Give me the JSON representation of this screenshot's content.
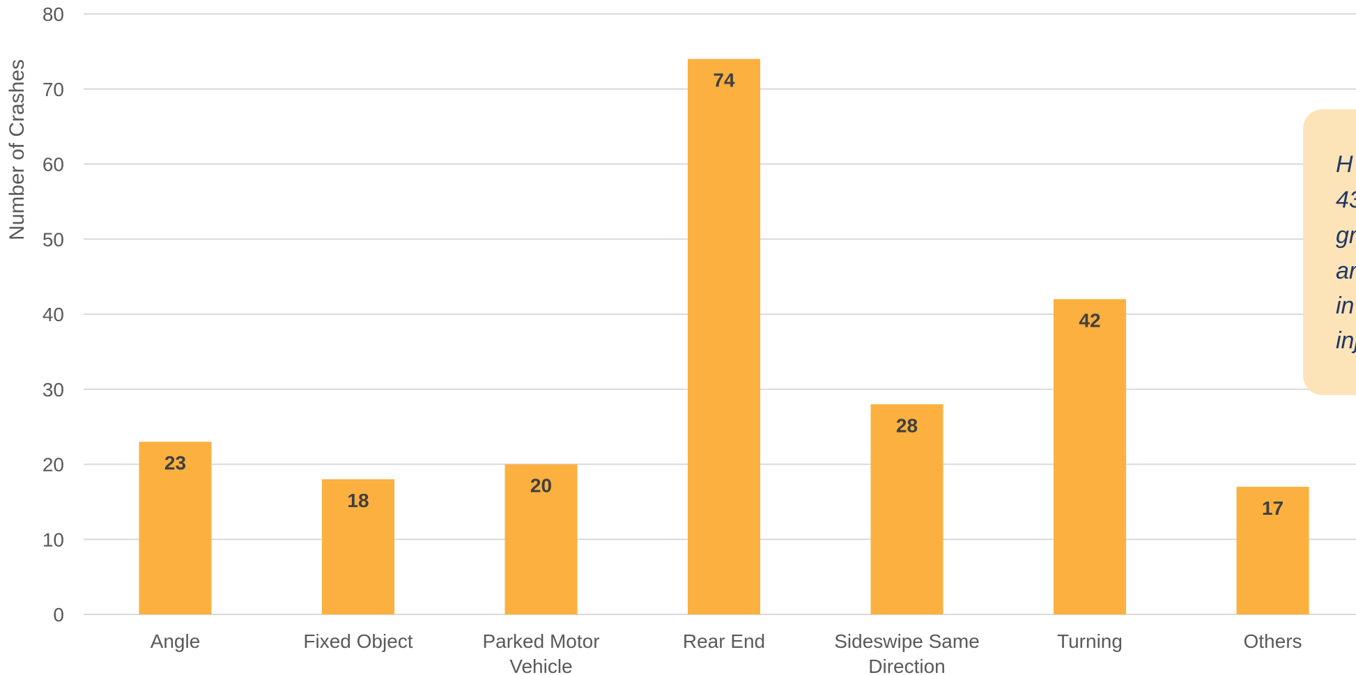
{
  "chart_data": {
    "type": "bar",
    "categories": [
      [
        "Angle"
      ],
      [
        "Fixed Object"
      ],
      [
        "Parked Motor",
        "Vehicle"
      ],
      [
        "Rear End"
      ],
      [
        "Sideswipe Same",
        "Direction"
      ],
      [
        "Turning"
      ],
      [
        "Others"
      ]
    ],
    "values": [
      23,
      18,
      20,
      74,
      28,
      42,
      17
    ],
    "ylabel": "Number of Crashes",
    "ylim": [
      0,
      80
    ],
    "yticks": [
      0,
      10,
      20,
      30,
      40,
      50,
      60,
      70,
      80
    ],
    "grid": true,
    "bar_color": "#fbb040",
    "data_labels": true
  },
  "annotation": {
    "lines": [
      "H",
      "43",
      "gr",
      "ar",
      "in",
      "inj"
    ],
    "background": "#fde3b8",
    "text_color": "#1f3864"
  }
}
